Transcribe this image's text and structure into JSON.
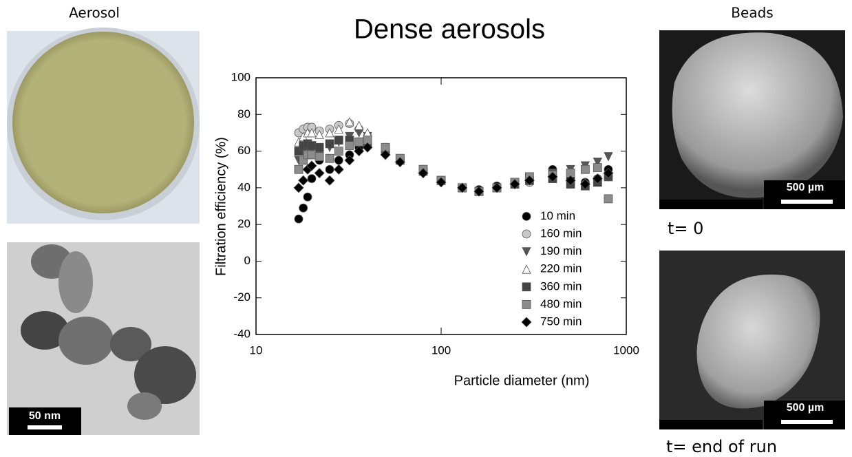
{
  "panels": {
    "left_label": "Aerosol",
    "right_label": "Beads",
    "tem_scale": "50 nm",
    "sem_scale_top": "500 µm",
    "sem_scale_bottom": "500 µm",
    "top_right_caption": "t= 0",
    "bottom_right_caption": "t= end of run"
  },
  "chart_data": {
    "type": "scatter",
    "title": "Dense aerosols",
    "x_label": "Particle diameter (nm)",
    "y_label": "Filtration efficiency (%)",
    "x_scale": "log",
    "xlim": [
      10,
      1000
    ],
    "xticks": [
      10,
      100,
      1000
    ],
    "ylim": [
      -40,
      100
    ],
    "yticks": [
      -40,
      -20,
      0,
      20,
      40,
      60,
      80,
      100
    ],
    "legend": "lower right",
    "x": [
      17,
      18,
      19,
      20,
      22,
      25,
      28,
      32,
      36,
      40,
      50,
      60,
      80,
      100,
      130,
      160,
      200,
      250,
      300,
      400,
      500,
      600,
      700,
      800
    ],
    "series": [
      {
        "name": "10 min",
        "color": "#000000",
        "marker": "circle",
        "values": [
          23,
          29,
          35,
          45,
          55,
          50,
          55,
          58,
          62,
          63,
          60,
          56,
          50,
          44,
          40,
          39,
          41,
          43,
          45,
          50,
          45,
          43,
          45,
          50
        ]
      },
      {
        "name": "160 min",
        "color": "#c8c8c8",
        "marker": "circle",
        "values": [
          70,
          72,
          73,
          73,
          71,
          72,
          74,
          75,
          72,
          68,
          60,
          55,
          49,
          44,
          40,
          38,
          40,
          42,
          43,
          45,
          43,
          42,
          44,
          46
        ]
      },
      {
        "name": "190 min",
        "color": "#555555",
        "marker": "triangle-down",
        "values": [
          55,
          60,
          62,
          60,
          58,
          62,
          65,
          68,
          70,
          68,
          61,
          56,
          50,
          44,
          40,
          38,
          40,
          43,
          46,
          48,
          50,
          52,
          54,
          57
        ]
      },
      {
        "name": "220 min",
        "color": "#ffffff",
        "marker": "triangle-up",
        "values": [
          65,
          68,
          70,
          70,
          69,
          70,
          72,
          76,
          74,
          70,
          62,
          56,
          50,
          44,
          40,
          38,
          40,
          42,
          44,
          46,
          44,
          43,
          45,
          47
        ]
      },
      {
        "name": "360 min",
        "color": "#444444",
        "marker": "square",
        "values": [
          60,
          63,
          64,
          63,
          62,
          64,
          66,
          66,
          65,
          64,
          60,
          55,
          49,
          44,
          40,
          38,
          40,
          42,
          44,
          45,
          42,
          41,
          43,
          46
        ]
      },
      {
        "name": "480 min",
        "color": "#8c8c8c",
        "marker": "square",
        "values": [
          50,
          55,
          58,
          58,
          57,
          56,
          60,
          63,
          65,
          66,
          62,
          56,
          50,
          44,
          40,
          38,
          40,
          43,
          46,
          47,
          48,
          50,
          51,
          34
        ]
      },
      {
        "name": "750 min",
        "color": "#000000",
        "marker": "diamond",
        "values": [
          40,
          44,
          50,
          52,
          48,
          44,
          50,
          55,
          60,
          62,
          58,
          54,
          48,
          43,
          40,
          38,
          40,
          42,
          44,
          46,
          44,
          42,
          45,
          48
        ]
      }
    ]
  }
}
